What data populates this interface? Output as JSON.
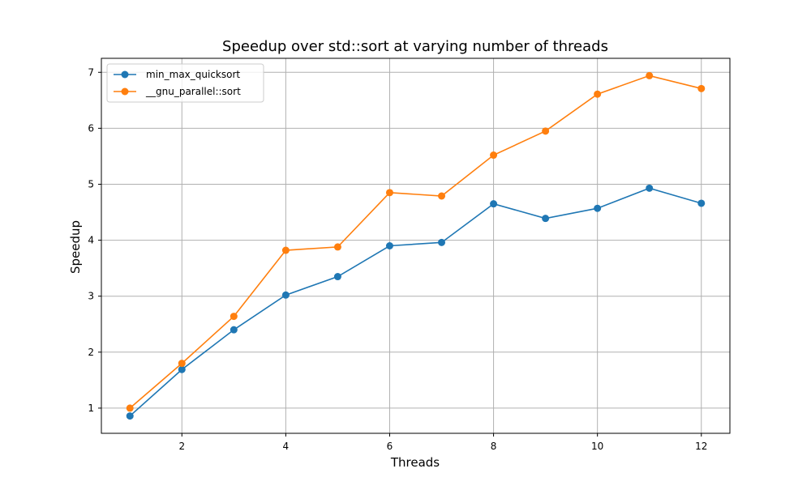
{
  "chart_data": {
    "type": "line",
    "title": "Speedup over std::sort at varying number of threads",
    "xlabel": "Threads",
    "ylabel": "Speedup",
    "xlim": [
      0.45,
      12.55
    ],
    "ylim": [
      0.55,
      7.25
    ],
    "xticks": [
      2,
      4,
      6,
      8,
      10,
      12
    ],
    "yticks": [
      1,
      2,
      3,
      4,
      5,
      6,
      7
    ],
    "grid": true,
    "legend_position": "top-left",
    "x": [
      1,
      2,
      3,
      4,
      5,
      6,
      7,
      8,
      9,
      10,
      11,
      12
    ],
    "series": [
      {
        "name": "min_max_quicksort",
        "color": "#1f77b4",
        "marker": "circle",
        "values": [
          0.86,
          1.69,
          2.4,
          3.02,
          3.35,
          3.9,
          3.96,
          4.65,
          4.39,
          4.57,
          4.93,
          4.66
        ]
      },
      {
        "name": "__gnu_parallel::sort",
        "color": "#ff7f0e",
        "marker": "circle",
        "values": [
          1.0,
          1.8,
          2.64,
          3.82,
          3.88,
          4.85,
          4.79,
          5.52,
          5.95,
          6.61,
          6.94,
          6.71
        ]
      }
    ]
  }
}
